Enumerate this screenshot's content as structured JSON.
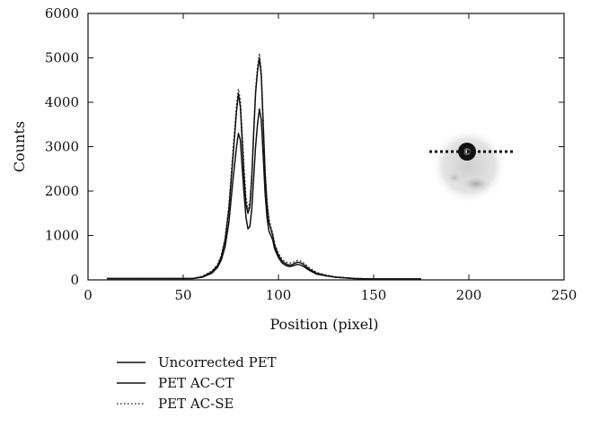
{
  "chart_data": {
    "type": "line",
    "xlabel": "Position (pixel)",
    "ylabel": "Counts",
    "xlim": [
      0,
      250
    ],
    "ylim": [
      0,
      6000
    ],
    "xticks": [
      0,
      50,
      100,
      150,
      200,
      250
    ],
    "yticks": [
      0,
      1000,
      2000,
      3000,
      4000,
      5000,
      6000
    ],
    "grid": false,
    "legend_position": "bottom-left",
    "series": [
      {
        "name": "Uncorrected PET",
        "style": "solid",
        "color": "#111111",
        "x": [
          10,
          20,
          30,
          40,
          50,
          55,
          60,
          65,
          68,
          70,
          72,
          74,
          76,
          78,
          79,
          80,
          81,
          82,
          83,
          84,
          85,
          86,
          87,
          88,
          89,
          90,
          91,
          92,
          93,
          94,
          95,
          96,
          97,
          98,
          100,
          102,
          104,
          106,
          108,
          110,
          112,
          114,
          116,
          120,
          125,
          130,
          140,
          150,
          160,
          175
        ],
        "y": [
          30,
          30,
          30,
          30,
          30,
          30,
          60,
          150,
          280,
          450,
          750,
          1300,
          2200,
          3000,
          3300,
          3150,
          2500,
          1900,
          1400,
          1150,
          1200,
          1600,
          2300,
          3000,
          3500,
          3850,
          3600,
          2800,
          1950,
          1400,
          1100,
          1000,
          900,
          700,
          500,
          380,
          320,
          300,
          320,
          350,
          330,
          280,
          220,
          130,
          90,
          60,
          30,
          20,
          20,
          20
        ]
      },
      {
        "name": "PET AC-CT",
        "style": "solid",
        "color": "#111111",
        "x": [
          10,
          20,
          30,
          40,
          50,
          55,
          60,
          65,
          68,
          70,
          72,
          74,
          76,
          78,
          79,
          80,
          81,
          82,
          83,
          84,
          85,
          86,
          87,
          88,
          89,
          90,
          91,
          92,
          93,
          94,
          95,
          96,
          97,
          98,
          100,
          102,
          104,
          106,
          108,
          110,
          112,
          114,
          116,
          120,
          125,
          130,
          140,
          150,
          160,
          175
        ],
        "y": [
          30,
          30,
          30,
          30,
          30,
          30,
          70,
          180,
          320,
          520,
          900,
          1600,
          2700,
          3800,
          4200,
          3900,
          3100,
          2300,
          1700,
          1500,
          1650,
          2300,
          3300,
          4200,
          4700,
          5000,
          4600,
          3500,
          2400,
          1700,
          1300,
          1150,
          1000,
          780,
          560,
          420,
          360,
          330,
          360,
          400,
          380,
          320,
          250,
          150,
          100,
          60,
          30,
          20,
          20,
          20
        ]
      },
      {
        "name": "PET AC-SE",
        "style": "dotted",
        "color": "#111111",
        "x": [
          10,
          20,
          30,
          40,
          50,
          55,
          60,
          65,
          68,
          70,
          72,
          74,
          76,
          78,
          79,
          80,
          81,
          82,
          83,
          84,
          85,
          86,
          87,
          88,
          89,
          90,
          91,
          92,
          93,
          94,
          95,
          96,
          97,
          98,
          100,
          102,
          104,
          106,
          108,
          110,
          112,
          114,
          116,
          120,
          125,
          130,
          140,
          150,
          160,
          175
        ],
        "y": [
          30,
          30,
          30,
          30,
          30,
          30,
          80,
          200,
          350,
          560,
          950,
          1700,
          2850,
          3950,
          4300,
          4050,
          3300,
          2500,
          1850,
          1600,
          1750,
          2400,
          3400,
          4300,
          4800,
          5100,
          4700,
          3600,
          2500,
          1800,
          1400,
          1200,
          1050,
          820,
          600,
          460,
          400,
          380,
          400,
          440,
          420,
          360,
          280,
          170,
          110,
          70,
          35,
          20,
          20,
          20
        ]
      }
    ]
  }
}
